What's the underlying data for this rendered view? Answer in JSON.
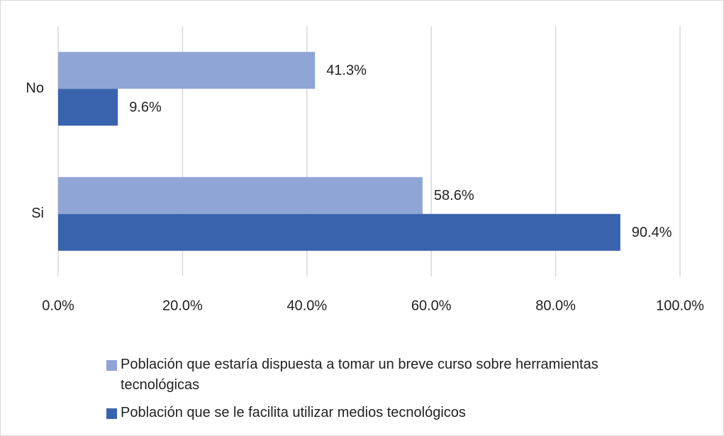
{
  "chart_data": {
    "type": "bar",
    "orientation": "horizontal",
    "categories": [
      "No",
      "Si"
    ],
    "series": [
      {
        "name": "Población que estaría dispuesta a tomar un breve curso sobre herramientas tecnológicas",
        "color": "#8fa5d6",
        "values": [
          41.3,
          58.6
        ],
        "value_labels": [
          "41.3%",
          "58.6%"
        ]
      },
      {
        "name": "Población que se le facilita utilizar medios tecnológicos",
        "color": "#3a63ad",
        "values": [
          9.6,
          90.4
        ],
        "value_labels": [
          "9.6%",
          "90.4%"
        ]
      }
    ],
    "xlim": [
      0,
      100
    ],
    "xticks": [
      {
        "value": 0,
        "label": "0.0%"
      },
      {
        "value": 20,
        "label": "20.0%"
      },
      {
        "value": 40,
        "label": "40.0%"
      },
      {
        "value": 60,
        "label": "60.0%"
      },
      {
        "value": 80,
        "label": "80.0%"
      },
      {
        "value": 100,
        "label": "100.0%"
      }
    ],
    "grid": true,
    "legend": "bottom"
  }
}
